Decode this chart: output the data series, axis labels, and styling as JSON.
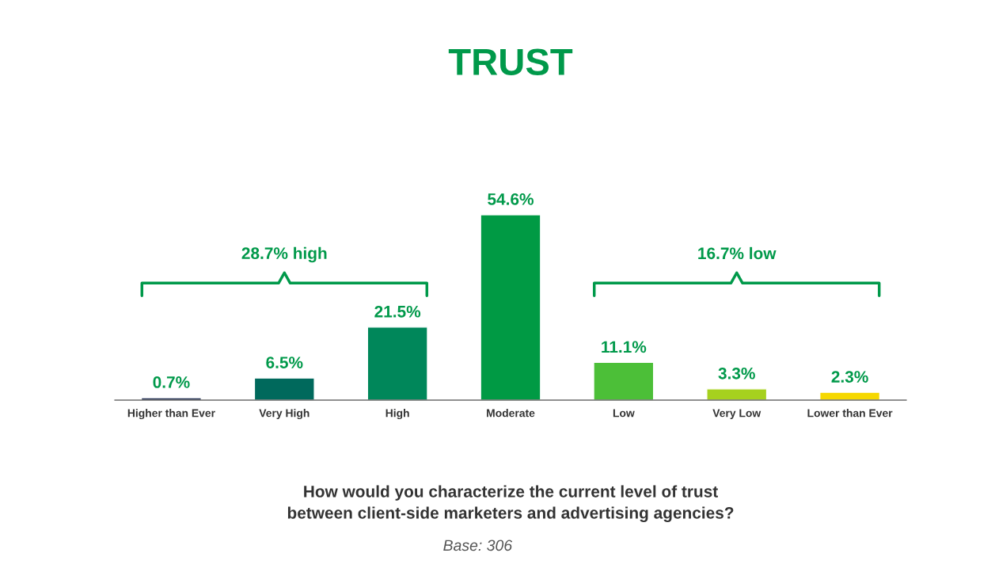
{
  "chart_data": {
    "type": "bar",
    "title": "TRUST",
    "xlabel": "How would you characterize the current level of trust\nbetween client-side marketers and advertising agencies?",
    "categories": [
      "Higher than Ever",
      "Very High",
      "High",
      "Moderate",
      "Low",
      "Very Low",
      "Lower than Ever"
    ],
    "values": [
      0.7,
      6.5,
      21.5,
      54.6,
      11.1,
      3.3,
      2.3
    ],
    "value_labels": [
      "0.7%",
      "6.5%",
      "21.5%",
      "54.6%",
      "11.1%",
      "3.3%",
      "2.3%"
    ],
    "colors": [
      "#1d2b4f",
      "#00695c",
      "#00875a",
      "#009a44",
      "#4cbf38",
      "#a6d11e",
      "#f6d800"
    ],
    "annotations": [
      "28.7% high",
      "16.7% low",
      "Base: 306"
    ],
    "grid": false,
    "legend": false
  }
}
